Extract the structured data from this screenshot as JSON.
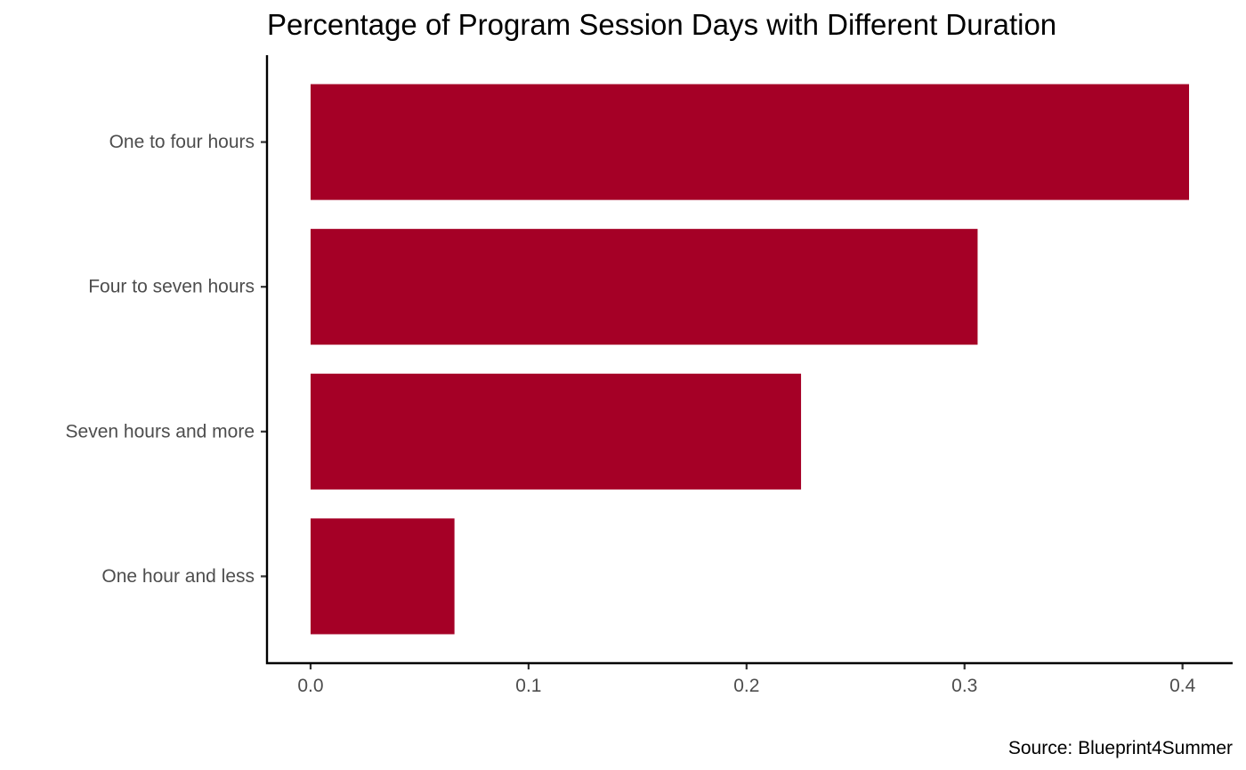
{
  "chart_data": {
    "type": "bar",
    "orientation": "horizontal",
    "title": "Percentage of Program Session Days with Different Duration",
    "caption": "Source: Blueprint4Summer",
    "xlabel": "",
    "ylabel": "",
    "categories": [
      "One to four hours",
      "Four to seven hours",
      "Seven hours and more",
      "One hour and less"
    ],
    "values": [
      0.403,
      0.306,
      0.225,
      0.066
    ],
    "x_ticks": [
      "0.0",
      "0.1",
      "0.2",
      "0.3",
      "0.4"
    ],
    "x_tick_values": [
      0,
      0.1,
      0.2,
      0.3,
      0.4
    ],
    "xlim": [
      -0.02,
      0.423
    ],
    "grid": false,
    "legend": "none",
    "bar_color": "#a50026"
  }
}
